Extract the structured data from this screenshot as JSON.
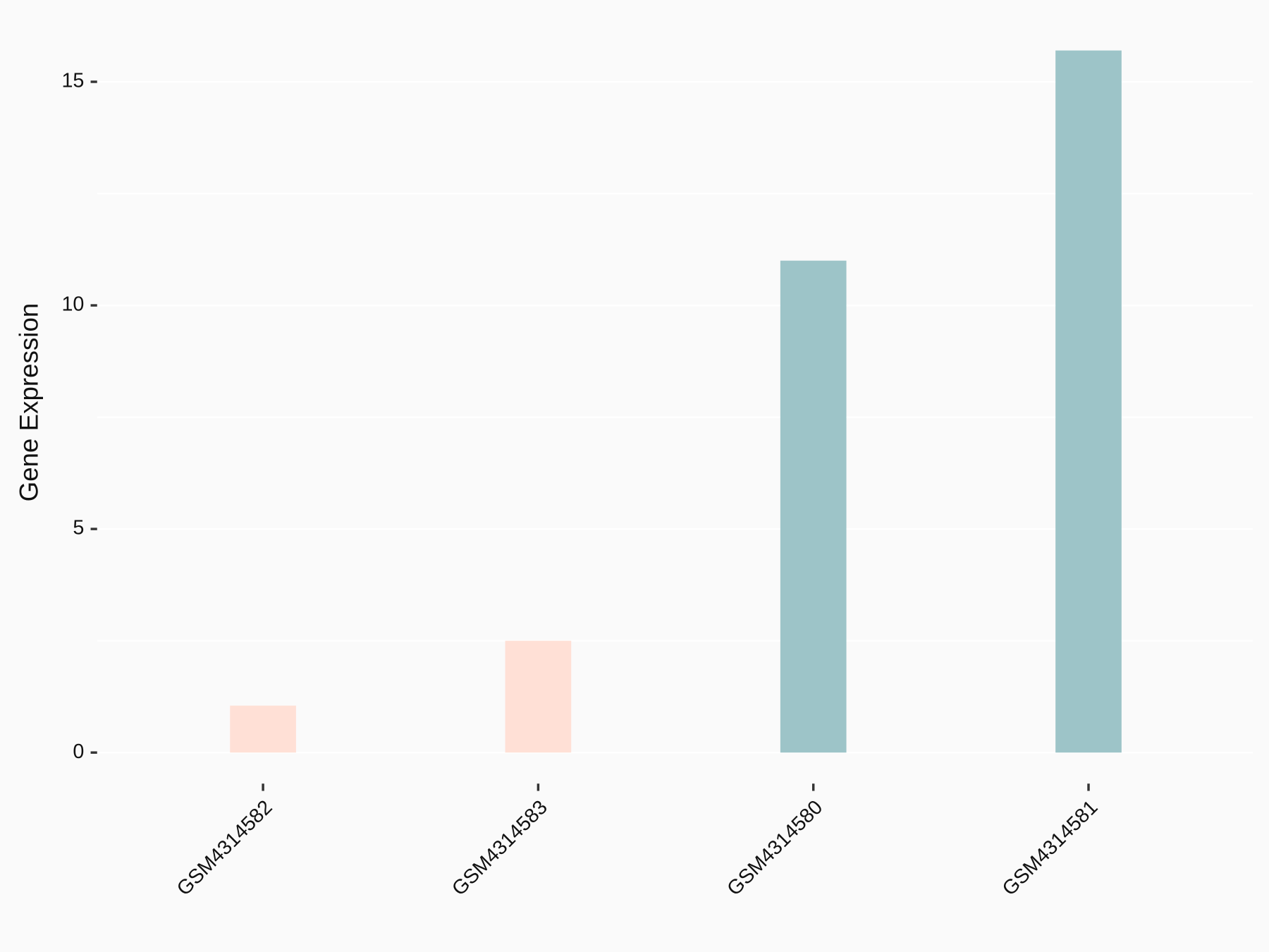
{
  "chart_data": {
    "type": "bar",
    "y_label": "Gene Expression",
    "categories": [
      "GSM4314582",
      "GSM4314583",
      "GSM4314580",
      "GSM4314581"
    ],
    "values": [
      1.05,
      2.5,
      11.0,
      15.7
    ],
    "colors": [
      "#ffe0d6",
      "#ffe0d6",
      "#9dc4c8",
      "#9dc4c8"
    ],
    "ylim": [
      -0.785,
      16.485
    ],
    "yticks": [
      0,
      5,
      10,
      15
    ],
    "minor_yticks": [
      2.5,
      7.5,
      12.5
    ],
    "grid": true
  }
}
